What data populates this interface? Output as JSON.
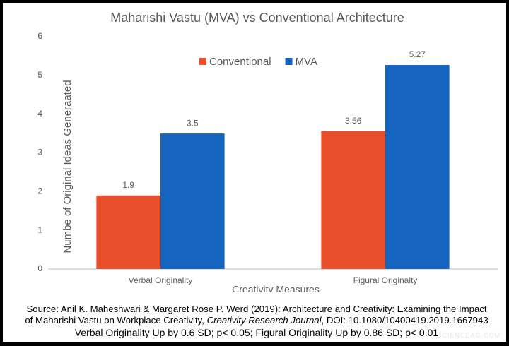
{
  "chart_data": {
    "type": "bar",
    "title": "Maharishi Vastu (MVA) vs Conventional Architecture",
    "ylabel": "Numbe of Original Ideas Generaated",
    "xlabel": "Creativity Measures",
    "categories": [
      "Verbal Originality",
      "Figural Originalty"
    ],
    "series": [
      {
        "name": "Conventional",
        "color": "#e8502b",
        "values": [
          1.9,
          3.56
        ]
      },
      {
        "name": "MVA",
        "color": "#1565c0",
        "values": [
          3.5,
          5.27
        ]
      }
    ],
    "ylim": [
      0,
      6
    ],
    "yticks": [
      0,
      1,
      2,
      3,
      4,
      5,
      6
    ],
    "grid": false,
    "legend": "top"
  },
  "source": [
    "Source: Anil K. Maheshwari & Margaret Rose P. Werd (2019): Architecture and Creativity: Examining the Impact",
    [
      "of Maharishi Vastu on Workplace Creativity, ",
      "Creativity Research Journal",
      ", DOI: 10.1080/10400419.2019.1667943"
    ],
    "Verbal Originality Up by 0.6 SD; p< 0.05; Figural Originality Up by 0.86 SD; p< 0.01"
  ],
  "watermark": "SCIENCEAG.COM"
}
